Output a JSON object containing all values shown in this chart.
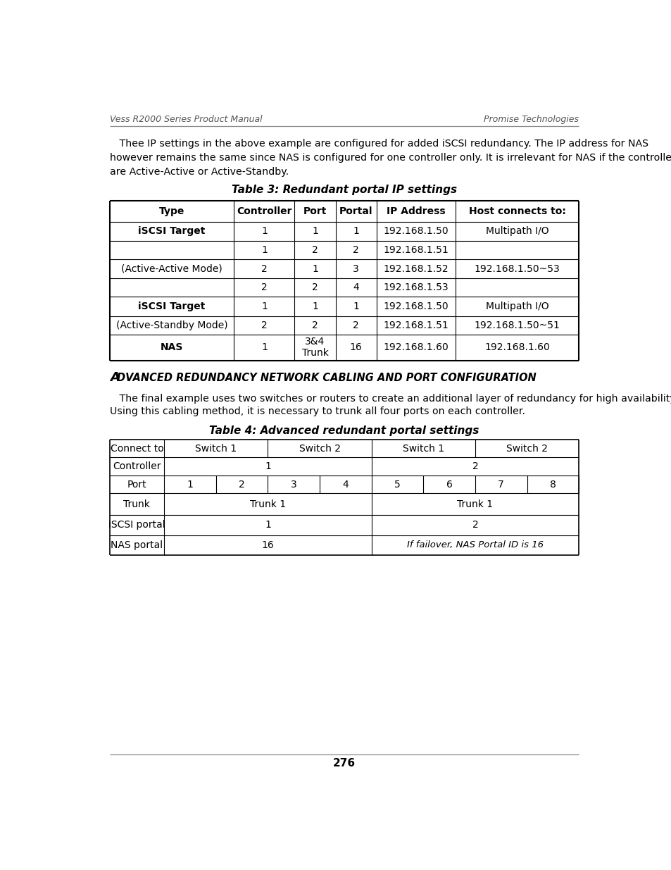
{
  "header_left": "Vess R2000 Series Product Manual",
  "header_right": "Promise Technologies",
  "footer_text": "276",
  "body_text1": "   Thee IP settings in the above example are configured for added iSCSI redundancy. The IP address for NAS",
  "body_text2": "however remains the same since NAS is configured for one controller only. It is irrelevant for NAS if the controllers",
  "body_text3": "are Active-Active or Active-Standby.",
  "table3_title": "Table 3: Redundant portal IP settings",
  "table3_headers": [
    "Type",
    "Controller",
    "Port",
    "Portal",
    "IP Address",
    "Host connects to:"
  ],
  "section_title_prefix": "A",
  "section_title_rest": "DVANCED REDUNDANCY NETWORK CABLING AND PORT CONFIGURATION",
  "body_text4": "   The final example uses two switches or routers to create an additional layer of redundancy for high availability.",
  "body_text5": "Using this cabling method, it is necessary to trunk all four ports on each controller.",
  "table4_title": "Table 4: Advanced redundant portal settings",
  "background_color": "#ffffff",
  "text_color": "#000000"
}
